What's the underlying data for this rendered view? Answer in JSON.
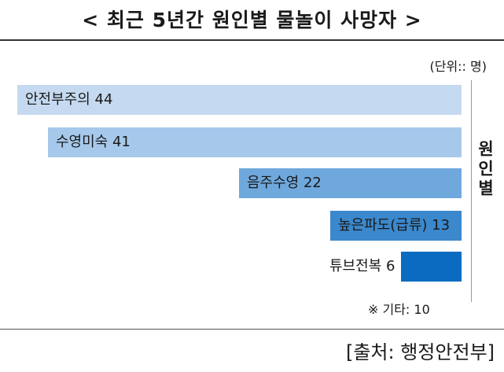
{
  "title": "< 최근 5년간 원인별 물놀이 사망자 >",
  "unit": "(단위:: 명)",
  "axis_label": "원인별",
  "note": "※ 기타: 10",
  "source": "[출처:  행정안전부]",
  "chart_data": {
    "type": "bar",
    "orientation": "horizontal",
    "title": "< 최근 5년간 원인별 물놀이 사망자 >",
    "ylabel": "원인별",
    "categories": [
      "안전부주의",
      "수영미숙",
      "음주수영",
      "높은파도(급류)",
      "튜브전복"
    ],
    "values": [
      44,
      41,
      22,
      13,
      6
    ],
    "bar_labels": [
      "안전부주의 44",
      "수영미숙 41",
      "음주수영 22",
      "높은파도(급류) 13",
      "튜브전복 6"
    ],
    "colors": [
      "#c5daf0",
      "#a6c9eb",
      "#6fa8dc",
      "#3b88cc",
      "#0b6bc0"
    ],
    "xlim": [
      0,
      44
    ]
  }
}
